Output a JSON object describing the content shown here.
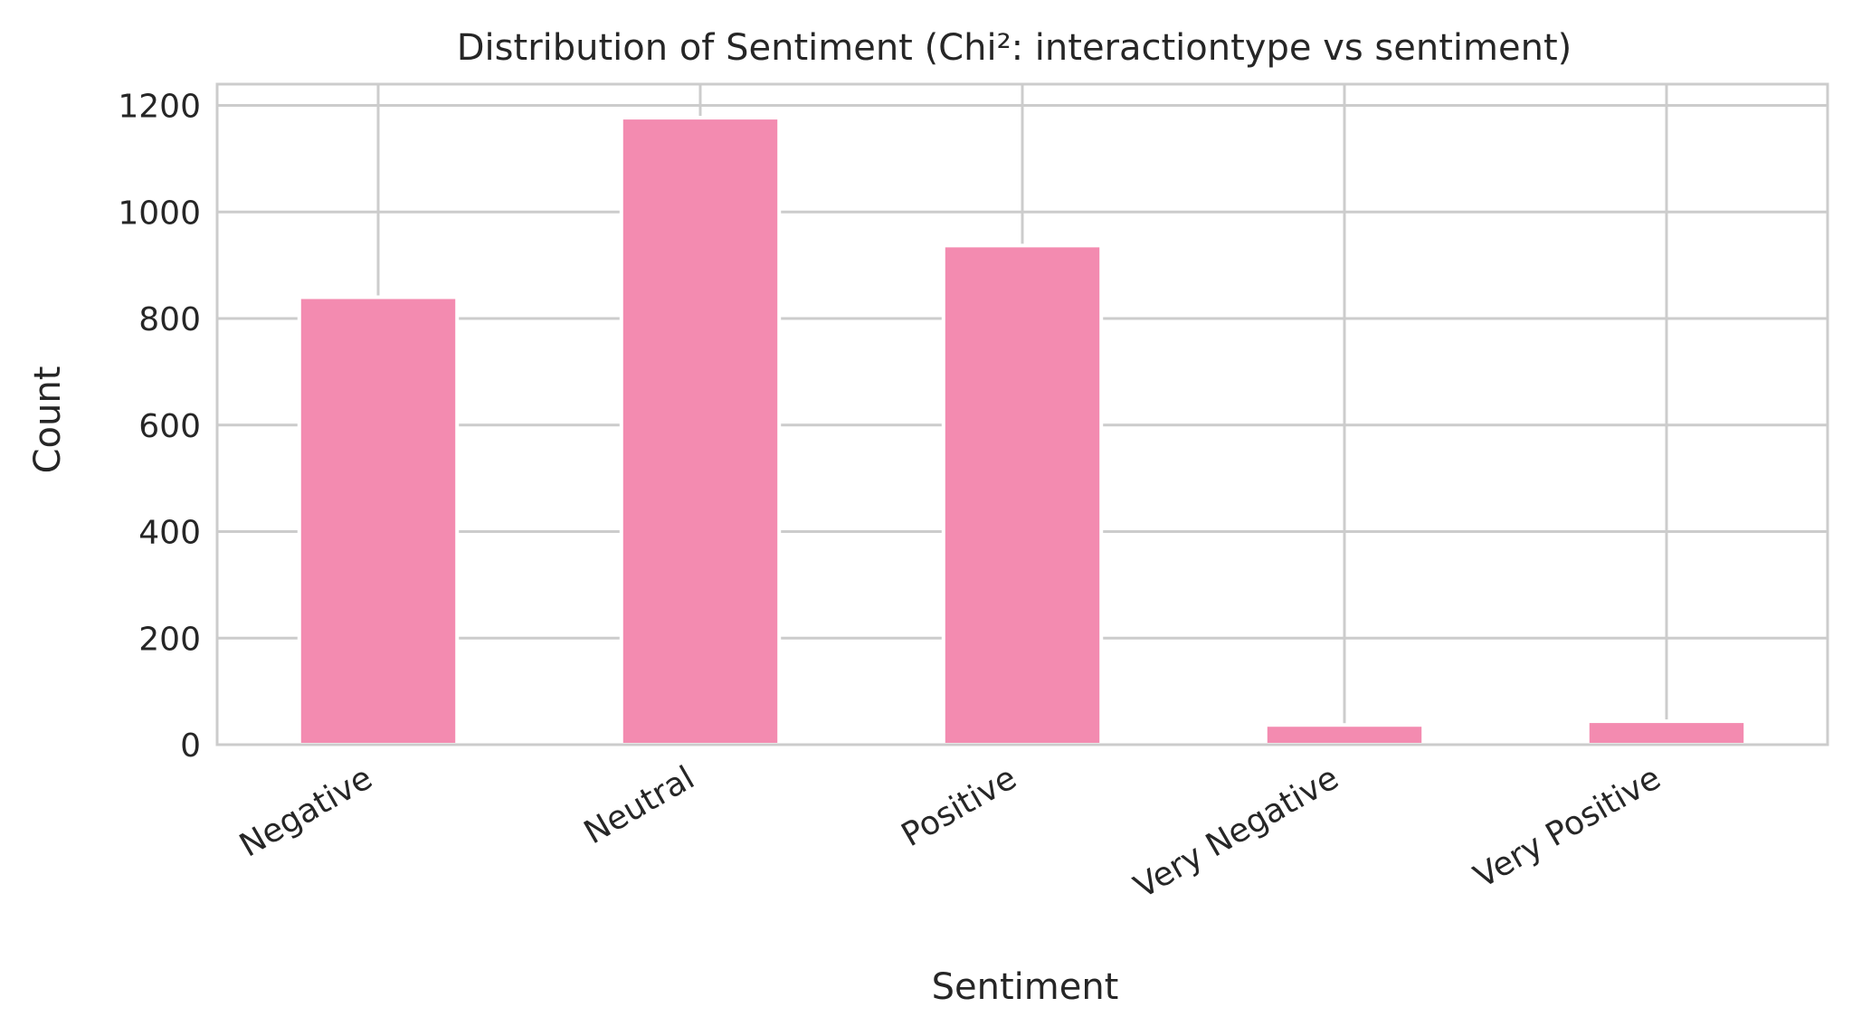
{
  "chart_data": {
    "type": "bar",
    "title": "Distribution of Sentiment (Chi²: interactiontype vs sentiment)",
    "xlabel": "Sentiment",
    "ylabel": "Count",
    "categories": [
      "Negative",
      "Neutral",
      "Positive",
      "Very Negative",
      "Very Positive"
    ],
    "values": [
      840,
      1177,
      937,
      37,
      44
    ],
    "ylim": [
      0,
      1240
    ],
    "yticks": [
      0,
      200,
      400,
      600,
      800,
      1000,
      1200
    ],
    "grid": true,
    "colors": {
      "bar": "#f38bb0",
      "grid": "#cccccc",
      "text": "#262626",
      "frame": "#cccccc"
    }
  }
}
